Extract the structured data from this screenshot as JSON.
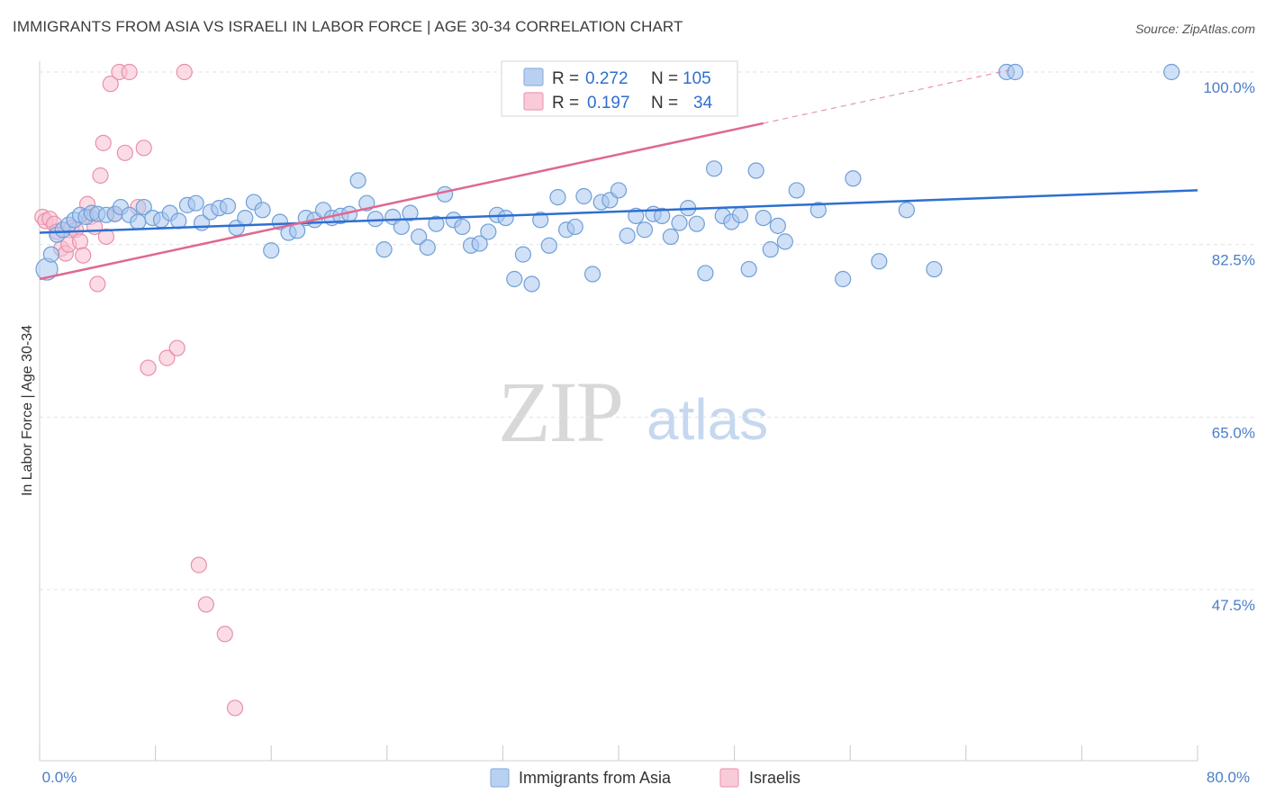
{
  "title": "IMMIGRANTS FROM ASIA VS ISRAELI IN LABOR FORCE | AGE 30-34 CORRELATION CHART",
  "source": "Source: ZipAtlas.com",
  "watermark": {
    "zip": "ZIP",
    "atlas": "atlas"
  },
  "legend": {
    "rows": [
      {
        "r_label": "R =",
        "r_value": "0.272",
        "n_label": "N =",
        "n_value": "105"
      },
      {
        "r_label": "R =",
        "r_value": "0.197",
        "n_label": "N =",
        "n_value": "34"
      }
    ]
  },
  "colors": {
    "blue_fill": "#a9c7ee",
    "blue_stroke": "#6f9fd8",
    "blue_line": "#2e6fd0",
    "pink_fill": "#f7bfd0",
    "pink_stroke": "#e98fac",
    "pink_line": "#e06890",
    "grid": "#e2e2e2",
    "axis_text": "#4a7ec8"
  },
  "chart_data": {
    "type": "scatter",
    "title": "IMMIGRANTS FROM ASIA VS ISRAELI IN LABOR FORCE | AGE 30-34 CORRELATION CHART",
    "xlabel": "",
    "ylabel": "In Labor Force | Age 30-34",
    "xlim": [
      0,
      80
    ],
    "ylim": [
      30,
      102
    ],
    "x_tick_labels": [
      "0.0%",
      "80.0%"
    ],
    "y_ticks": [
      47.5,
      65.0,
      82.5,
      100.0
    ],
    "y_tick_labels": [
      "47.5%",
      "65.0%",
      "82.5%",
      "100.0%"
    ],
    "grid": true,
    "legend_position": "top-center",
    "series": [
      {
        "name": "Immigrants from Asia",
        "color": "#6f9fd8",
        "r": 0.272,
        "n": 105,
        "trend": {
          "x": [
            0,
            80
          ],
          "y": [
            83.7,
            88.0
          ]
        },
        "points": [
          [
            0.5,
            80.0
          ],
          [
            0.8,
            81.5
          ],
          [
            1.2,
            83.5
          ],
          [
            1.6,
            84.0
          ],
          [
            2.0,
            84.5
          ],
          [
            2.4,
            85.0
          ],
          [
            2.8,
            85.5
          ],
          [
            3.2,
            85.3
          ],
          [
            3.6,
            85.7
          ],
          [
            4.0,
            85.6
          ],
          [
            4.6,
            85.5
          ],
          [
            5.2,
            85.6
          ],
          [
            5.6,
            86.3
          ],
          [
            6.2,
            85.5
          ],
          [
            6.8,
            84.8
          ],
          [
            7.2,
            86.3
          ],
          [
            7.8,
            85.2
          ],
          [
            8.4,
            85.0
          ],
          [
            9.0,
            85.7
          ],
          [
            9.6,
            84.9
          ],
          [
            10.2,
            86.5
          ],
          [
            10.8,
            86.7
          ],
          [
            11.2,
            84.7
          ],
          [
            11.8,
            85.8
          ],
          [
            12.4,
            86.2
          ],
          [
            13.0,
            86.4
          ],
          [
            13.6,
            84.2
          ],
          [
            14.2,
            85.2
          ],
          [
            14.8,
            86.8
          ],
          [
            15.4,
            86.0
          ],
          [
            16.0,
            81.9
          ],
          [
            16.6,
            84.8
          ],
          [
            17.2,
            83.7
          ],
          [
            17.8,
            83.9
          ],
          [
            18.4,
            85.2
          ],
          [
            19.0,
            85.0
          ],
          [
            19.6,
            86.0
          ],
          [
            20.2,
            85.2
          ],
          [
            20.8,
            85.4
          ],
          [
            21.4,
            85.6
          ],
          [
            22.0,
            89.0
          ],
          [
            22.6,
            86.7
          ],
          [
            23.2,
            85.1
          ],
          [
            23.8,
            82.0
          ],
          [
            24.4,
            85.3
          ],
          [
            25.0,
            84.3
          ],
          [
            25.6,
            85.7
          ],
          [
            26.2,
            83.3
          ],
          [
            26.8,
            82.2
          ],
          [
            27.4,
            84.6
          ],
          [
            28.0,
            87.6
          ],
          [
            28.6,
            85.0
          ],
          [
            29.2,
            84.3
          ],
          [
            29.8,
            82.4
          ],
          [
            30.4,
            82.6
          ],
          [
            31.0,
            83.8
          ],
          [
            31.6,
            85.5
          ],
          [
            32.2,
            85.2
          ],
          [
            32.8,
            79.0
          ],
          [
            33.4,
            81.5
          ],
          [
            34.0,
            78.5
          ],
          [
            34.6,
            85.0
          ],
          [
            35.2,
            82.4
          ],
          [
            35.8,
            87.3
          ],
          [
            36.4,
            84.0
          ],
          [
            37.0,
            84.3
          ],
          [
            37.6,
            87.4
          ],
          [
            38.2,
            79.5
          ],
          [
            38.8,
            86.8
          ],
          [
            39.4,
            87.0
          ],
          [
            40.0,
            88.0
          ],
          [
            40.6,
            83.4
          ],
          [
            41.2,
            85.4
          ],
          [
            41.8,
            84.0
          ],
          [
            42.4,
            85.6
          ],
          [
            43.0,
            85.4
          ],
          [
            43.6,
            83.3
          ],
          [
            44.2,
            84.7
          ],
          [
            44.8,
            86.2
          ],
          [
            45.4,
            84.6
          ],
          [
            46.0,
            79.6
          ],
          [
            46.6,
            90.2
          ],
          [
            47.2,
            85.4
          ],
          [
            47.8,
            84.8
          ],
          [
            48.4,
            85.5
          ],
          [
            49.0,
            80.0
          ],
          [
            49.5,
            90.0
          ],
          [
            50.0,
            85.2
          ],
          [
            50.5,
            82.0
          ],
          [
            51.0,
            84.4
          ],
          [
            51.5,
            82.8
          ],
          [
            52.3,
            88.0
          ],
          [
            53.8,
            86.0
          ],
          [
            55.5,
            79.0
          ],
          [
            56.2,
            89.2
          ],
          [
            58.0,
            80.8
          ],
          [
            59.9,
            86.0
          ],
          [
            61.8,
            80.0
          ],
          [
            66.8,
            100.0
          ],
          [
            67.4,
            100.0
          ],
          [
            78.2,
            100.0
          ]
        ]
      },
      {
        "name": "Israelis",
        "color": "#e98fac",
        "r": 0.197,
        "n": 34,
        "trend": {
          "x": [
            0,
            50
          ],
          "y": [
            79.0,
            94.8
          ]
        },
        "trend_extension": {
          "x": [
            50,
            67
          ],
          "y": [
            94.8,
            100.2
          ]
        },
        "points": [
          [
            0.2,
            85.3
          ],
          [
            0.4,
            84.9
          ],
          [
            0.7,
            85.1
          ],
          [
            1.0,
            84.6
          ],
          [
            1.2,
            83.8
          ],
          [
            1.5,
            82.1
          ],
          [
            1.8,
            81.6
          ],
          [
            2.0,
            82.5
          ],
          [
            2.2,
            84.2
          ],
          [
            2.5,
            84.0
          ],
          [
            2.8,
            82.8
          ],
          [
            3.0,
            81.4
          ],
          [
            3.3,
            86.6
          ],
          [
            3.5,
            85.3
          ],
          [
            3.8,
            84.3
          ],
          [
            4.0,
            78.5
          ],
          [
            4.2,
            89.5
          ],
          [
            4.4,
            92.8
          ],
          [
            4.6,
            83.3
          ],
          [
            4.9,
            98.8
          ],
          [
            5.2,
            85.6
          ],
          [
            5.5,
            100.0
          ],
          [
            5.9,
            91.8
          ],
          [
            6.2,
            100.0
          ],
          [
            6.8,
            86.3
          ],
          [
            7.2,
            92.3
          ],
          [
            7.5,
            70.0
          ],
          [
            8.8,
            71.0
          ],
          [
            9.5,
            72.0
          ],
          [
            10.0,
            100.0
          ],
          [
            11.0,
            50.0
          ],
          [
            11.5,
            46.0
          ],
          [
            12.8,
            43.0
          ],
          [
            13.5,
            35.5
          ]
        ]
      }
    ]
  },
  "bottom_legend": [
    {
      "label": "Immigrants from Asia"
    },
    {
      "label": "Israelis"
    }
  ]
}
